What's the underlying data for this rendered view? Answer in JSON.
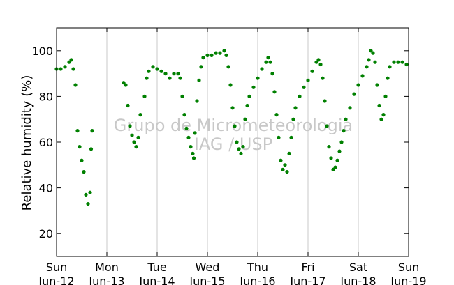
{
  "chart_data": {
    "type": "scatter",
    "title": "",
    "xlabel": "",
    "ylabel": "Relative humidity (%)",
    "ylim": [
      10,
      110
    ],
    "yticks": [
      20,
      40,
      60,
      80,
      100
    ],
    "xlim": [
      "2016-06-12T00:00",
      "2016-06-19T00:00"
    ],
    "xticks": [
      {
        "day": "Sun",
        "date": "Jun-12"
      },
      {
        "day": "Mon",
        "date": "Jun-13"
      },
      {
        "day": "Tue",
        "date": "Jun-14"
      },
      {
        "day": "Wed",
        "date": "Jun-15"
      },
      {
        "day": "Thu",
        "date": "Jun-16"
      },
      {
        "day": "Fri",
        "date": "Jun-17"
      },
      {
        "day": "Sat",
        "date": "Jun-18"
      },
      {
        "day": "Sun",
        "date": "Jun-19"
      }
    ],
    "grid": "vertical",
    "marker_color": "#008000",
    "watermark": [
      "Grupo de Micrometeorologia",
      "IAG / USP"
    ],
    "series": [
      {
        "points": [
          [
            "2016-06-12T00:00",
            92
          ],
          [
            "2016-06-12T02:00",
            92
          ],
          [
            "2016-06-12T04:00",
            93
          ],
          [
            "2016-06-12T06:00",
            95
          ],
          [
            "2016-06-12T07:00",
            96
          ],
          [
            "2016-06-12T08:00",
            92
          ],
          [
            "2016-06-12T09:00",
            85
          ],
          [
            "2016-06-12T10:00",
            65
          ],
          [
            "2016-06-12T11:00",
            58
          ],
          [
            "2016-06-12T12:00",
            52
          ],
          [
            "2016-06-12T13:00",
            47
          ],
          [
            "2016-06-12T14:00",
            37
          ],
          [
            "2016-06-12T15:00",
            33
          ],
          [
            "2016-06-12T16:00",
            38
          ],
          [
            "2016-06-12T16:30",
            57
          ],
          [
            "2016-06-12T17:00",
            65
          ],
          [
            "2016-06-13T08:00",
            86
          ],
          [
            "2016-06-13T09:00",
            85
          ],
          [
            "2016-06-13T10:00",
            76
          ],
          [
            "2016-06-13T11:00",
            67
          ],
          [
            "2016-06-13T12:00",
            63
          ],
          [
            "2016-06-13T13:00",
            60
          ],
          [
            "2016-06-13T14:00",
            58
          ],
          [
            "2016-06-13T15:00",
            62
          ],
          [
            "2016-06-13T16:00",
            72
          ],
          [
            "2016-06-13T18:00",
            80
          ],
          [
            "2016-06-13T19:00",
            88
          ],
          [
            "2016-06-13T20:00",
            91
          ],
          [
            "2016-06-13T22:00",
            93
          ],
          [
            "2016-06-14T00:00",
            92
          ],
          [
            "2016-06-14T02:00",
            91
          ],
          [
            "2016-06-14T04:00",
            90
          ],
          [
            "2016-06-14T06:00",
            88
          ],
          [
            "2016-06-14T08:00",
            90
          ],
          [
            "2016-06-14T10:00",
            90
          ],
          [
            "2016-06-14T11:00",
            88
          ],
          [
            "2016-06-14T12:00",
            80
          ],
          [
            "2016-06-14T13:00",
            72
          ],
          [
            "2016-06-14T14:00",
            66
          ],
          [
            "2016-06-14T15:00",
            62
          ],
          [
            "2016-06-14T16:00",
            58
          ],
          [
            "2016-06-14T17:00",
            55
          ],
          [
            "2016-06-14T17:30",
            53
          ],
          [
            "2016-06-14T18:00",
            64
          ],
          [
            "2016-06-14T19:00",
            78
          ],
          [
            "2016-06-14T20:00",
            87
          ],
          [
            "2016-06-14T21:00",
            93
          ],
          [
            "2016-06-14T22:00",
            97
          ],
          [
            "2016-06-15T00:00",
            98
          ],
          [
            "2016-06-15T02:00",
            98
          ],
          [
            "2016-06-15T04:00",
            99
          ],
          [
            "2016-06-15T06:00",
            99
          ],
          [
            "2016-06-15T08:00",
            100
          ],
          [
            "2016-06-15T09:00",
            98
          ],
          [
            "2016-06-15T10:00",
            93
          ],
          [
            "2016-06-15T11:00",
            85
          ],
          [
            "2016-06-15T12:00",
            75
          ],
          [
            "2016-06-15T13:00",
            67
          ],
          [
            "2016-06-15T14:00",
            60
          ],
          [
            "2016-06-15T15:00",
            57
          ],
          [
            "2016-06-15T16:00",
            55
          ],
          [
            "2016-06-15T17:00",
            58
          ],
          [
            "2016-06-15T18:00",
            70
          ],
          [
            "2016-06-15T19:00",
            76
          ],
          [
            "2016-06-15T20:00",
            80
          ],
          [
            "2016-06-15T22:00",
            84
          ],
          [
            "2016-06-16T00:00",
            88
          ],
          [
            "2016-06-16T02:00",
            92
          ],
          [
            "2016-06-16T04:00",
            95
          ],
          [
            "2016-06-16T05:00",
            97
          ],
          [
            "2016-06-16T06:00",
            95
          ],
          [
            "2016-06-16T07:00",
            90
          ],
          [
            "2016-06-16T08:00",
            82
          ],
          [
            "2016-06-16T09:00",
            72
          ],
          [
            "2016-06-16T10:00",
            62
          ],
          [
            "2016-06-16T11:00",
            52
          ],
          [
            "2016-06-16T12:00",
            48
          ],
          [
            "2016-06-16T13:00",
            50
          ],
          [
            "2016-06-16T14:00",
            47
          ],
          [
            "2016-06-16T15:00",
            55
          ],
          [
            "2016-06-16T16:00",
            62
          ],
          [
            "2016-06-16T17:00",
            70
          ],
          [
            "2016-06-16T18:00",
            75
          ],
          [
            "2016-06-16T20:00",
            80
          ],
          [
            "2016-06-16T22:00",
            84
          ],
          [
            "2016-06-17T00:00",
            87
          ],
          [
            "2016-06-17T02:00",
            91
          ],
          [
            "2016-06-17T04:00",
            95
          ],
          [
            "2016-06-17T05:00",
            96
          ],
          [
            "2016-06-17T06:00",
            94
          ],
          [
            "2016-06-17T07:00",
            88
          ],
          [
            "2016-06-17T08:00",
            78
          ],
          [
            "2016-06-17T09:00",
            67
          ],
          [
            "2016-06-17T10:00",
            58
          ],
          [
            "2016-06-17T11:00",
            53
          ],
          [
            "2016-06-17T12:00",
            48
          ],
          [
            "2016-06-17T13:00",
            49
          ],
          [
            "2016-06-17T14:00",
            52
          ],
          [
            "2016-06-17T15:00",
            56
          ],
          [
            "2016-06-17T16:00",
            60
          ],
          [
            "2016-06-17T17:00",
            65
          ],
          [
            "2016-06-17T18:00",
            70
          ],
          [
            "2016-06-17T20:00",
            75
          ],
          [
            "2016-06-17T22:00",
            81
          ],
          [
            "2016-06-18T00:00",
            85
          ],
          [
            "2016-06-18T02:00",
            89
          ],
          [
            "2016-06-18T04:00",
            93
          ],
          [
            "2016-06-18T05:00",
            96
          ],
          [
            "2016-06-18T06:00",
            100
          ],
          [
            "2016-06-18T07:00",
            99
          ],
          [
            "2016-06-18T08:00",
            95
          ],
          [
            "2016-06-18T09:00",
            85
          ],
          [
            "2016-06-18T10:00",
            76
          ],
          [
            "2016-06-18T11:00",
            70
          ],
          [
            "2016-06-18T12:00",
            72
          ],
          [
            "2016-06-18T13:00",
            80
          ],
          [
            "2016-06-18T14:00",
            88
          ],
          [
            "2016-06-18T15:00",
            93
          ],
          [
            "2016-06-18T17:00",
            95
          ],
          [
            "2016-06-18T19:00",
            95
          ],
          [
            "2016-06-18T21:00",
            95
          ],
          [
            "2016-06-18T23:00",
            94
          ]
        ]
      }
    ]
  }
}
